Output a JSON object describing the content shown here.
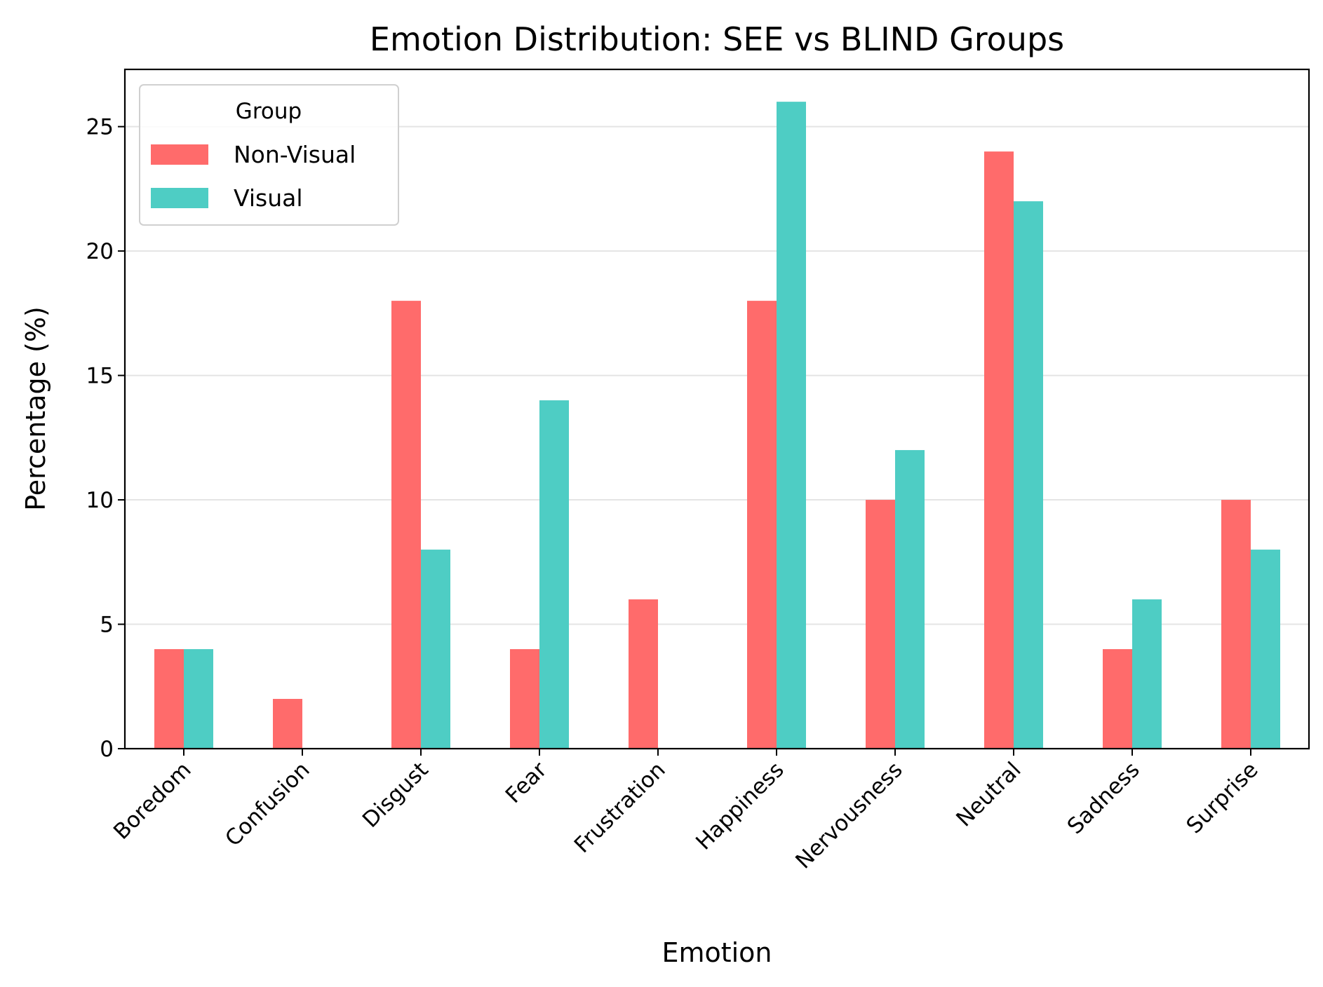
{
  "chart_data": {
    "type": "bar",
    "title": "Emotion Distribution: SEE vs BLIND Groups",
    "xlabel": "Emotion",
    "ylabel": "Percentage (%)",
    "categories": [
      "Boredom",
      "Confusion",
      "Disgust",
      "Fear",
      "Frustration",
      "Happiness",
      "Nervousness",
      "Neutral",
      "Sadness",
      "Surprise"
    ],
    "series": [
      {
        "name": "Non-Visual",
        "color": "#ff6b6b",
        "values": [
          4,
          2,
          18,
          4,
          6,
          18,
          10,
          24,
          4,
          10
        ]
      },
      {
        "name": "Visual",
        "color": "#4ecdc4",
        "values": [
          4,
          0,
          8,
          14,
          0,
          26,
          12,
          22,
          6,
          8
        ]
      }
    ],
    "ylim": [
      0,
      27.3
    ],
    "yticks": [
      0,
      5,
      10,
      15,
      20,
      25
    ],
    "grid": true,
    "legend": {
      "title": "Group",
      "placement": "top-left"
    }
  }
}
